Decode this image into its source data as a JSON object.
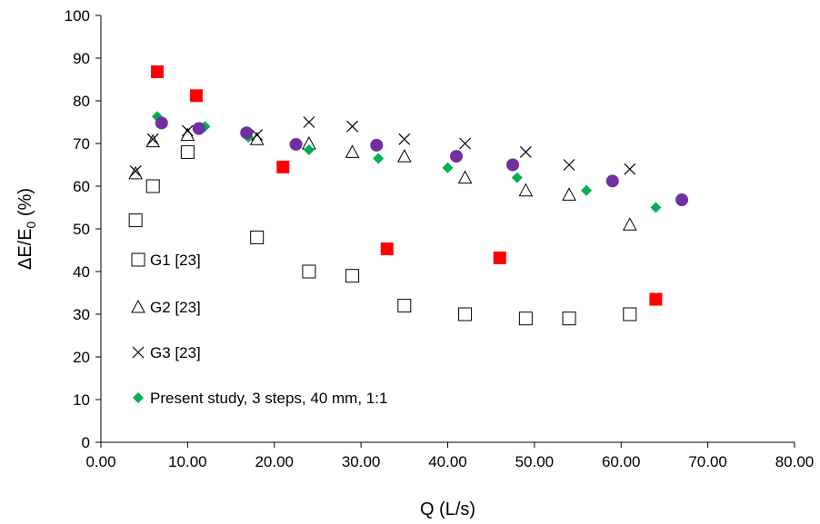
{
  "chart_data": {
    "type": "scatter",
    "xlabel": "Q (L/s)",
    "ylabel_parts": [
      "ΔE/E",
      "0",
      " (%)"
    ],
    "xlim": [
      0,
      80
    ],
    "ylim": [
      0,
      100
    ],
    "x_ticks": [
      0,
      10,
      20,
      30,
      40,
      50,
      60,
      70,
      80
    ],
    "x_tick_labels": [
      "0.00",
      "10.00",
      "20.00",
      "30.00",
      "40.00",
      "50.00",
      "60.00",
      "70.00",
      "80.00"
    ],
    "y_ticks": [
      0,
      10,
      20,
      30,
      40,
      50,
      60,
      70,
      80,
      90,
      100
    ],
    "y_tick_labels": [
      "0",
      "10",
      "20",
      "30",
      "40",
      "50",
      "60",
      "70",
      "80",
      "90",
      "100"
    ],
    "grid": false,
    "legend_position": "bottom-left inside",
    "series": [
      {
        "name": "G1 [23]",
        "marker": "open-square",
        "color": "#000000",
        "points": [
          [
            4,
            52
          ],
          [
            6,
            60
          ],
          [
            10,
            68
          ],
          [
            18,
            48
          ],
          [
            24,
            40
          ],
          [
            29,
            39
          ],
          [
            35,
            32
          ],
          [
            42,
            30
          ],
          [
            49,
            29
          ],
          [
            54,
            29
          ],
          [
            61,
            30
          ]
        ]
      },
      {
        "name": "G2 [23]",
        "marker": "open-triangle",
        "color": "#000000",
        "points": [
          [
            4,
            63
          ],
          [
            6,
            70.5
          ],
          [
            10,
            72
          ],
          [
            18,
            71
          ],
          [
            24,
            70
          ],
          [
            29,
            68
          ],
          [
            35,
            67
          ],
          [
            42,
            62
          ],
          [
            49,
            59
          ],
          [
            54,
            58
          ],
          [
            61,
            51
          ]
        ]
      },
      {
        "name": "G3 [23]",
        "marker": "x",
        "color": "#000000",
        "points": [
          [
            4,
            63.5
          ],
          [
            6,
            71
          ],
          [
            10,
            73
          ],
          [
            18,
            72
          ],
          [
            24,
            75
          ],
          [
            29,
            74
          ],
          [
            35,
            71
          ],
          [
            42,
            70
          ],
          [
            49,
            68
          ],
          [
            54,
            65
          ],
          [
            61,
            64
          ]
        ]
      },
      {
        "name": "Present study, 3 steps, 40 mm, 1:1",
        "marker": "filled-diamond",
        "color": "#00B050",
        "points": [
          [
            6.5,
            76.3
          ],
          [
            12,
            74
          ],
          [
            17,
            71.5
          ],
          [
            24,
            68.5
          ],
          [
            32,
            66.5
          ],
          [
            40,
            64.3
          ],
          [
            48,
            62
          ],
          [
            56,
            59
          ],
          [
            64,
            55
          ]
        ]
      },
      {
        "marker": "filled-square",
        "color": "#FF0000",
        "points": [
          [
            6.5,
            86.8
          ],
          [
            11,
            81.2
          ],
          [
            21,
            64.5
          ],
          [
            33,
            45.3
          ],
          [
            46,
            43.2
          ],
          [
            64,
            33.5
          ]
        ]
      },
      {
        "marker": "filled-circle",
        "color": "#7030A0",
        "points": [
          [
            7,
            74.8
          ],
          [
            11.3,
            73.5
          ],
          [
            16.8,
            72.5
          ],
          [
            22.5,
            69.8
          ],
          [
            31.8,
            69.6
          ],
          [
            41,
            67
          ],
          [
            47.5,
            65
          ],
          [
            59,
            61.2
          ],
          [
            67,
            56.8
          ]
        ]
      }
    ]
  }
}
